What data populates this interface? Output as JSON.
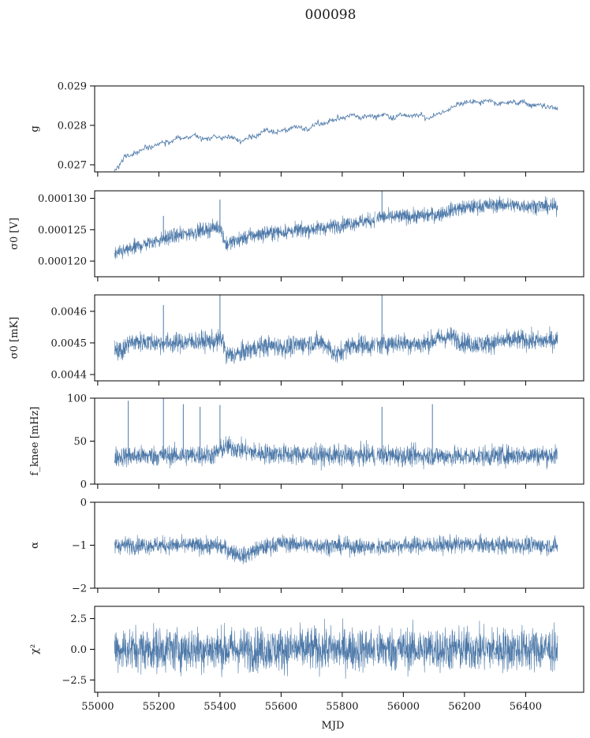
{
  "figure": {
    "title": "000098",
    "xlabel": "MJD"
  },
  "style": {
    "line_color": "#4c78a8",
    "axes_color": "#000000",
    "background": "#ffffff"
  },
  "chart_data": [
    {
      "type": "line",
      "ylabel": "g",
      "xlim": [
        54990,
        56590
      ],
      "ylim": [
        0.02682,
        0.029
      ],
      "yticks": [
        0.027,
        0.028,
        0.029
      ],
      "ytick_labels": [
        "0.027",
        "0.028",
        "0.029"
      ],
      "series": [
        {
          "x": [
            55055,
            55070,
            55090,
            55120,
            55160,
            55200,
            55240,
            55280,
            55320,
            55360,
            55400,
            55440,
            55480,
            55520,
            55560,
            55600,
            55640,
            55680,
            55720,
            55760,
            55800,
            55840,
            55880,
            55920,
            55960,
            56000,
            56040,
            56080,
            56120,
            56160,
            56200,
            56240,
            56280,
            56320,
            56360,
            56400,
            56440,
            56480,
            56505
          ],
          "y": [
            0.02685,
            0.027,
            0.02718,
            0.0273,
            0.02742,
            0.02752,
            0.0276,
            0.0277,
            0.02772,
            0.02765,
            0.02773,
            0.02767,
            0.0276,
            0.02778,
            0.02787,
            0.02783,
            0.02795,
            0.0279,
            0.02805,
            0.0281,
            0.0282,
            0.02825,
            0.0282,
            0.02827,
            0.02822,
            0.02825,
            0.02825,
            0.0282,
            0.0283,
            0.02845,
            0.0286,
            0.02858,
            0.02862,
            0.02855,
            0.0286,
            0.02855,
            0.0285,
            0.02848,
            0.0284
          ]
        }
      ],
      "noise": 3.5e-05
    },
    {
      "type": "line",
      "ylabel": "σ0 [V]",
      "xlim": [
        54990,
        56590
      ],
      "ylim": [
        0.0001175,
        0.0001312
      ],
      "yticks": [
        0.00012,
        0.000125,
        0.00013
      ],
      "ytick_labels": [
        "0.000120",
        "0.000125",
        "0.000130"
      ],
      "series": [
        {
          "x": [
            55055,
            55100,
            55160,
            55220,
            55280,
            55340,
            55400,
            55420,
            55450,
            55500,
            55560,
            55620,
            55680,
            55740,
            55800,
            55860,
            55900,
            55920,
            55960,
            56000,
            56060,
            56120,
            56160,
            56200,
            56260,
            56320,
            56380,
            56440,
            56505
          ],
          "y": [
            0.000121,
            0.0001218,
            0.0001228,
            0.0001236,
            0.0001243,
            0.0001248,
            0.0001255,
            0.0001226,
            0.0001232,
            0.000124,
            0.0001245,
            0.0001247,
            0.000125,
            0.0001253,
            0.0001258,
            0.0001263,
            0.0001265,
            0.000127,
            0.000127,
            0.0001271,
            0.0001272,
            0.0001275,
            0.0001282,
            0.0001285,
            0.0001288,
            0.000129,
            0.0001288,
            0.0001288,
            0.0001286
          ]
        }
      ],
      "noise": 6e-07,
      "spikes": [
        {
          "x": 55215,
          "y": 0.0001272
        },
        {
          "x": 55400,
          "y": 0.0001298
        },
        {
          "x": 55930,
          "y": 0.0001312
        }
      ]
    },
    {
      "type": "line",
      "ylabel": "σ0 [mK]",
      "xlim": [
        54990,
        56590
      ],
      "ylim": [
        0.00438,
        0.004652
      ],
      "yticks": [
        0.0044,
        0.0045,
        0.0046
      ],
      "ytick_labels": [
        "0.0044",
        "0.0045",
        "0.0046"
      ],
      "series": [
        {
          "x": [
            55055,
            55080,
            55100,
            55150,
            55200,
            55260,
            55320,
            55380,
            55410,
            55420,
            55460,
            55500,
            55540,
            55580,
            55620,
            55660,
            55700,
            55740,
            55780,
            55820,
            55860,
            55900,
            55960,
            56000,
            56060,
            56120,
            56160,
            56200,
            56260,
            56320,
            56380,
            56440,
            56505
          ],
          "y": [
            0.00449,
            0.00447,
            0.0045,
            0.004505,
            0.0045,
            0.0045,
            0.004505,
            0.004505,
            0.00451,
            0.00446,
            0.004465,
            0.00448,
            0.00449,
            0.00449,
            0.004485,
            0.004495,
            0.0045,
            0.0045,
            0.00446,
            0.00449,
            0.004495,
            0.00449,
            0.0045,
            0.0045,
            0.004495,
            0.004515,
            0.00452,
            0.0045,
            0.004495,
            0.004505,
            0.00451,
            0.004505,
            0.00451
          ]
        }
      ],
      "noise": 1.6e-05,
      "spikes": [
        {
          "x": 55215,
          "y": 0.00462
        },
        {
          "x": 55400,
          "y": 0.004652
        },
        {
          "x": 55930,
          "y": 0.004652
        }
      ]
    },
    {
      "type": "line",
      "ylabel": "f_knee [mHz]",
      "xlim": [
        54990,
        56590
      ],
      "ylim": [
        0,
        100
      ],
      "yticks": [
        0,
        50,
        100
      ],
      "ytick_labels": [
        "0",
        "50",
        "100"
      ],
      "series": [
        {
          "x": [
            55055,
            55200,
            55380,
            55420,
            55470,
            55520,
            55600,
            55700,
            55800,
            55900,
            56000,
            56100,
            56200,
            56300,
            56400,
            56505
          ],
          "y": [
            32,
            33,
            34,
            44,
            40,
            36,
            35,
            34,
            33,
            34,
            33,
            33,
            32,
            33,
            34,
            33
          ]
        }
      ],
      "noise": 6,
      "spikes": [
        {
          "x": 55100,
          "y": 97
        },
        {
          "x": 55215,
          "y": 100
        },
        {
          "x": 55280,
          "y": 93
        },
        {
          "x": 55335,
          "y": 90
        },
        {
          "x": 55400,
          "y": 92
        },
        {
          "x": 55930,
          "y": 90
        },
        {
          "x": 56095,
          "y": 93
        }
      ]
    },
    {
      "type": "line",
      "ylabel": "α",
      "xlim": [
        54990,
        56590
      ],
      "ylim": [
        -2,
        0
      ],
      "yticks": [
        -2,
        -1,
        0
      ],
      "ytick_labels": [
        "−2",
        "−1",
        "0"
      ],
      "series": [
        {
          "x": [
            55055,
            55200,
            55400,
            55440,
            55480,
            55520,
            55600,
            55700,
            55800,
            55900,
            56000,
            56100,
            56200,
            56300,
            56400,
            56505
          ],
          "y": [
            -1.0,
            -1.0,
            -1.02,
            -1.15,
            -1.25,
            -1.1,
            -0.95,
            -1.0,
            -1.02,
            -1.05,
            -1.0,
            -1.0,
            -0.98,
            -1.0,
            -1.0,
            -1.02
          ]
        }
      ],
      "noise": 0.1
    },
    {
      "type": "line",
      "ylabel": "χ²",
      "xlim": [
        54990,
        56590
      ],
      "ylim": [
        -3.5,
        3.5
      ],
      "yticks": [
        -2.5,
        0.0,
        2.5
      ],
      "ytick_labels": [
        "−2.5",
        "0.0",
        "2.5"
      ],
      "xticks": [
        55000,
        55200,
        55400,
        55600,
        55800,
        56000,
        56200,
        56400
      ],
      "xtick_labels": [
        "55000",
        "55200",
        "55400",
        "55600",
        "55800",
        "56000",
        "56200",
        "56400"
      ],
      "series": [
        {
          "x": [
            55055,
            56505
          ],
          "y": [
            0,
            0
          ]
        }
      ],
      "noise": 0.9
    }
  ]
}
